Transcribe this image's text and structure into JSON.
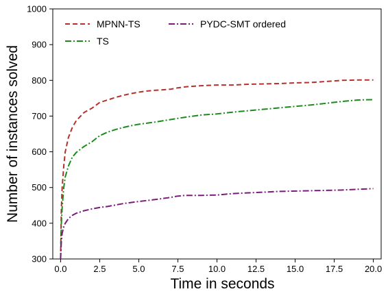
{
  "chart_data": {
    "type": "line",
    "xlabel": "Time in seconds",
    "ylabel": "Number of instances solved",
    "xlim": [
      -0.5,
      20.5
    ],
    "ylim": [
      300,
      1000
    ],
    "xticks": [
      "0.0",
      "2.5",
      "5.0",
      "7.5",
      "10.0",
      "12.5",
      "15.0",
      "17.5",
      "20.0"
    ],
    "yticks": [
      "300",
      "400",
      "500",
      "600",
      "700",
      "800",
      "900",
      "1000"
    ],
    "grid": false,
    "legend_position": "top-left",
    "series": [
      {
        "name": "MPNN-TS",
        "color": "#b5302a",
        "linestyle": "dashed",
        "x": [
          0.0,
          0.05,
          0.1,
          0.2,
          0.3,
          0.5,
          0.75,
          1.0,
          1.5,
          2.0,
          2.5,
          3.0,
          3.5,
          4.0,
          4.5,
          5.0,
          5.5,
          6.0,
          7.0,
          7.5,
          8.0,
          9.0,
          10.0,
          11.0,
          12.0,
          13.0,
          14.0,
          15.0,
          16.0,
          17.0,
          18.0,
          19.0,
          20.0
        ],
        "y": [
          300,
          440,
          500,
          560,
          600,
          640,
          668,
          687,
          710,
          722,
          738,
          745,
          752,
          758,
          763,
          767,
          770,
          772,
          775,
          779,
          782,
          785,
          787,
          787,
          789,
          790,
          791,
          793,
          794,
          797,
          800,
          801,
          801
        ]
      },
      {
        "name": "TS",
        "color": "#1a8a1a",
        "linestyle": "dashdot",
        "x": [
          0.0,
          0.05,
          0.1,
          0.2,
          0.3,
          0.5,
          0.75,
          1.0,
          1.5,
          2.0,
          2.5,
          3.0,
          3.5,
          4.0,
          4.5,
          5.0,
          6.0,
          7.0,
          8.0,
          9.0,
          10.0,
          11.0,
          12.0,
          13.0,
          14.0,
          15.0,
          16.0,
          17.0,
          18.0,
          19.0,
          20.0
        ],
        "y": [
          300,
          400,
          445,
          500,
          530,
          560,
          585,
          598,
          615,
          628,
          645,
          655,
          662,
          668,
          673,
          677,
          683,
          690,
          697,
          703,
          706,
          711,
          715,
          719,
          723,
          727,
          731,
          736,
          741,
          745,
          746
        ]
      },
      {
        "name": "PYDC-SMT ordered",
        "color": "#7a1a7a",
        "linestyle": "dashdot",
        "x": [
          0.0,
          0.05,
          0.1,
          0.2,
          0.3,
          0.5,
          0.75,
          1.0,
          1.5,
          2.0,
          2.5,
          3.0,
          4.0,
          5.0,
          6.0,
          7.0,
          7.5,
          8.0,
          9.0,
          10.0,
          11.0,
          12.0,
          13.0,
          14.0,
          15.0,
          16.0,
          17.0,
          18.0,
          19.0,
          20.0
        ],
        "y": [
          300,
          350,
          372,
          390,
          400,
          413,
          422,
          428,
          435,
          440,
          444,
          447,
          455,
          461,
          466,
          472,
          476,
          478,
          478,
          479,
          483,
          485,
          487,
          489,
          490,
          491,
          492,
          493,
          495,
          497
        ]
      }
    ]
  }
}
